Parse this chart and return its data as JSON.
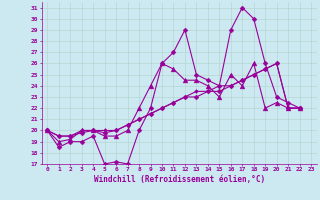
{
  "xlabel": "Windchill (Refroidissement éolien,°C)",
  "bg_color": "#cce8f0",
  "grid_color": "#b0d4cc",
  "line_color": "#990099",
  "xlim": [
    -0.5,
    23.5
  ],
  "ylim": [
    17,
    31.5
  ],
  "xticks": [
    0,
    1,
    2,
    3,
    4,
    5,
    6,
    7,
    8,
    9,
    10,
    11,
    12,
    13,
    14,
    15,
    16,
    17,
    18,
    19,
    20,
    21,
    22,
    23
  ],
  "yticks": [
    17,
    18,
    19,
    20,
    21,
    22,
    23,
    24,
    25,
    26,
    27,
    28,
    29,
    30,
    31
  ],
  "series": [
    {
      "y": [
        20,
        18.5,
        19,
        19,
        19.5,
        17,
        17.2,
        17,
        20,
        22,
        26,
        27,
        29,
        25,
        24.5,
        24,
        29,
        31,
        30,
        26,
        23,
        22.5,
        22
      ],
      "marker": "D",
      "ms": 2.5
    },
    {
      "y": [
        20,
        19,
        19.2,
        20,
        20,
        19.5,
        19.5,
        20,
        22,
        24,
        26,
        25.5,
        24.5,
        24.5,
        24,
        23,
        25,
        24,
        26,
        22,
        22.5,
        22,
        22
      ],
      "marker": "^",
      "ms": 3.5
    },
    {
      "y": [
        20,
        19.5,
        19.5,
        19.8,
        20,
        19.8,
        20,
        20.5,
        21,
        21.5,
        22,
        22.5,
        23,
        23,
        23.5,
        23.5,
        24,
        24.5,
        25,
        25.5,
        26,
        22,
        22
      ],
      "marker": "D",
      "ms": 2.5
    },
    {
      "y": [
        20,
        19.5,
        19.5,
        20,
        20,
        20,
        20,
        20.5,
        21,
        21.5,
        22,
        22.5,
        23,
        23.5,
        23.5,
        24,
        24,
        24.5,
        25,
        25.5,
        26,
        22,
        22
      ],
      "marker": "D",
      "ms": 2.0
    }
  ],
  "xlabel_fontsize": 5.5,
  "tick_fontsize": 4.5,
  "lw": 0.8
}
